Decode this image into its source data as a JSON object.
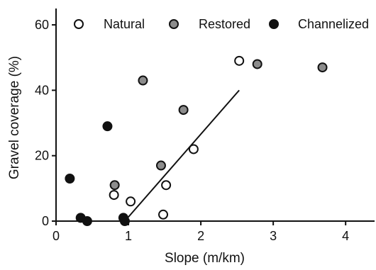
{
  "chart_data": {
    "type": "scatter",
    "title": "",
    "xlabel": "Slope (m/km)",
    "ylabel": "Gravel coverage (%)",
    "xlim": [
      0,
      4.4
    ],
    "ylim": [
      0,
      65
    ],
    "x_ticks": [
      0,
      1,
      2,
      3,
      4
    ],
    "y_ticks": [
      0,
      20,
      40,
      60
    ],
    "grid": false,
    "legend_position": "top",
    "series": [
      {
        "name": "Natural",
        "marker": "open-circle",
        "color": "#ffffff",
        "stroke": "#111111",
        "points": [
          {
            "x": 0.8,
            "y": 8
          },
          {
            "x": 1.03,
            "y": 6
          },
          {
            "x": 1.48,
            "y": 2
          },
          {
            "x": 1.52,
            "y": 11
          },
          {
            "x": 1.9,
            "y": 22
          },
          {
            "x": 2.53,
            "y": 49
          }
        ]
      },
      {
        "name": "Restored",
        "marker": "gray-circle",
        "color": "#8c8c8c",
        "stroke": "#111111",
        "points": [
          {
            "x": 0.81,
            "y": 11
          },
          {
            "x": 1.2,
            "y": 43
          },
          {
            "x": 1.45,
            "y": 17
          },
          {
            "x": 1.76,
            "y": 34
          },
          {
            "x": 2.78,
            "y": 48
          },
          {
            "x": 3.68,
            "y": 47
          }
        ]
      },
      {
        "name": "Channelized",
        "marker": "filled-circle",
        "color": "#111111",
        "stroke": "#111111",
        "points": [
          {
            "x": 0.19,
            "y": 13
          },
          {
            "x": 0.34,
            "y": 1
          },
          {
            "x": 0.43,
            "y": 0
          },
          {
            "x": 0.71,
            "y": 29
          },
          {
            "x": 0.93,
            "y": 1
          },
          {
            "x": 0.95,
            "y": 0
          }
        ]
      }
    ],
    "fit_line": {
      "series": "Natural",
      "x": [
        0.95,
        2.53
      ],
      "y": [
        0,
        40
      ]
    }
  }
}
